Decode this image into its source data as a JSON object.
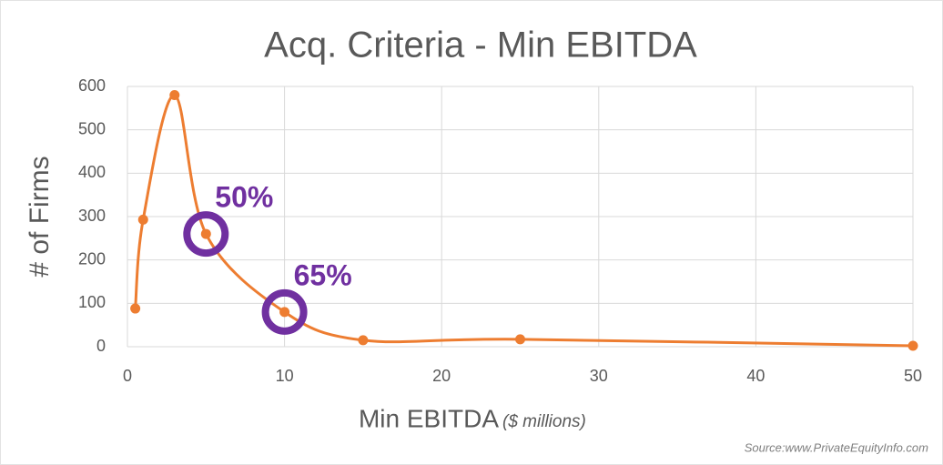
{
  "chart_data": {
    "type": "line",
    "title": "Acq. Criteria - Min EBITDA",
    "xlabel": "Min EBITDA",
    "xlabel_unit": "($ millions)",
    "ylabel": "# of Firms",
    "source": "Source:www.PrivateEquityInfo.com",
    "x": [
      0.5,
      1,
      3,
      5,
      10,
      15,
      25,
      50
    ],
    "series": [
      {
        "name": "Firms",
        "color": "#ed7d31",
        "values": [
          88,
          293,
          580,
          260,
          80,
          15,
          17,
          2
        ]
      }
    ],
    "xlim": [
      0,
      50
    ],
    "xticks": [
      0,
      10,
      20,
      30,
      40,
      50
    ],
    "ylim": [
      0,
      600
    ],
    "yticks": [
      0,
      100,
      200,
      300,
      400,
      500,
      600
    ],
    "grid": true,
    "annotations": [
      {
        "text": "50%",
        "x": 5
      },
      {
        "text": "65%",
        "x": 10
      }
    ],
    "annotation_color": "#7030a0"
  }
}
